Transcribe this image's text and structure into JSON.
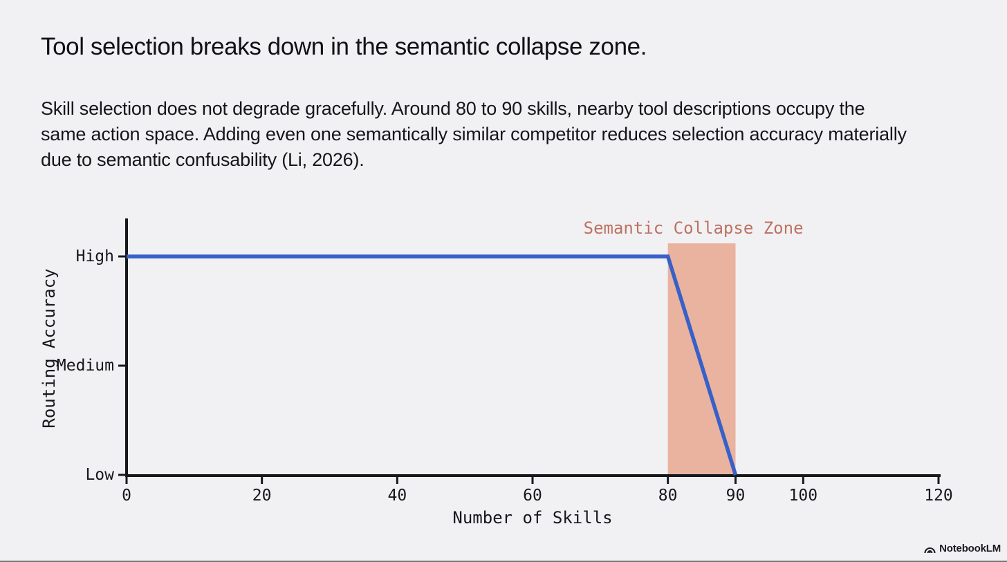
{
  "page": {
    "background": "#f1f1f4"
  },
  "header": {
    "title": "Tool selection breaks down in the semantic collapse zone.",
    "body": "Skill selection does not degrade gracefully. Around 80 to 90 skills, nearby tool descriptions occupy the same action space. Adding even one semantically similar competitor reduces selection accuracy materially due to semantic confusability (Li, 2026)."
  },
  "chart_data": {
    "type": "line",
    "title": "",
    "xlabel": "Number of Skills",
    "ylabel": "Routing Accuracy",
    "xlim": [
      0,
      120
    ],
    "x_ticks": [
      0,
      20,
      40,
      60,
      80,
      90,
      100,
      120
    ],
    "y_ticks": [
      "Low",
      "Medium",
      "High"
    ],
    "grid": false,
    "legend": false,
    "axis_color": "#17181c",
    "series": [
      {
        "name": "Routing Accuracy",
        "color": "#3760c8",
        "points": [
          {
            "x": 0,
            "y": "High"
          },
          {
            "x": 80,
            "y": "High"
          },
          {
            "x": 90,
            "y": "Low"
          }
        ]
      }
    ],
    "annotations": [
      {
        "type": "zone",
        "label": "Semantic Collapse Zone",
        "x_start": 80,
        "x_end": 90,
        "fill": "#e9b3a0",
        "label_color": "#bd7260"
      }
    ]
  },
  "footer": {
    "brand": "NotebookLM"
  }
}
